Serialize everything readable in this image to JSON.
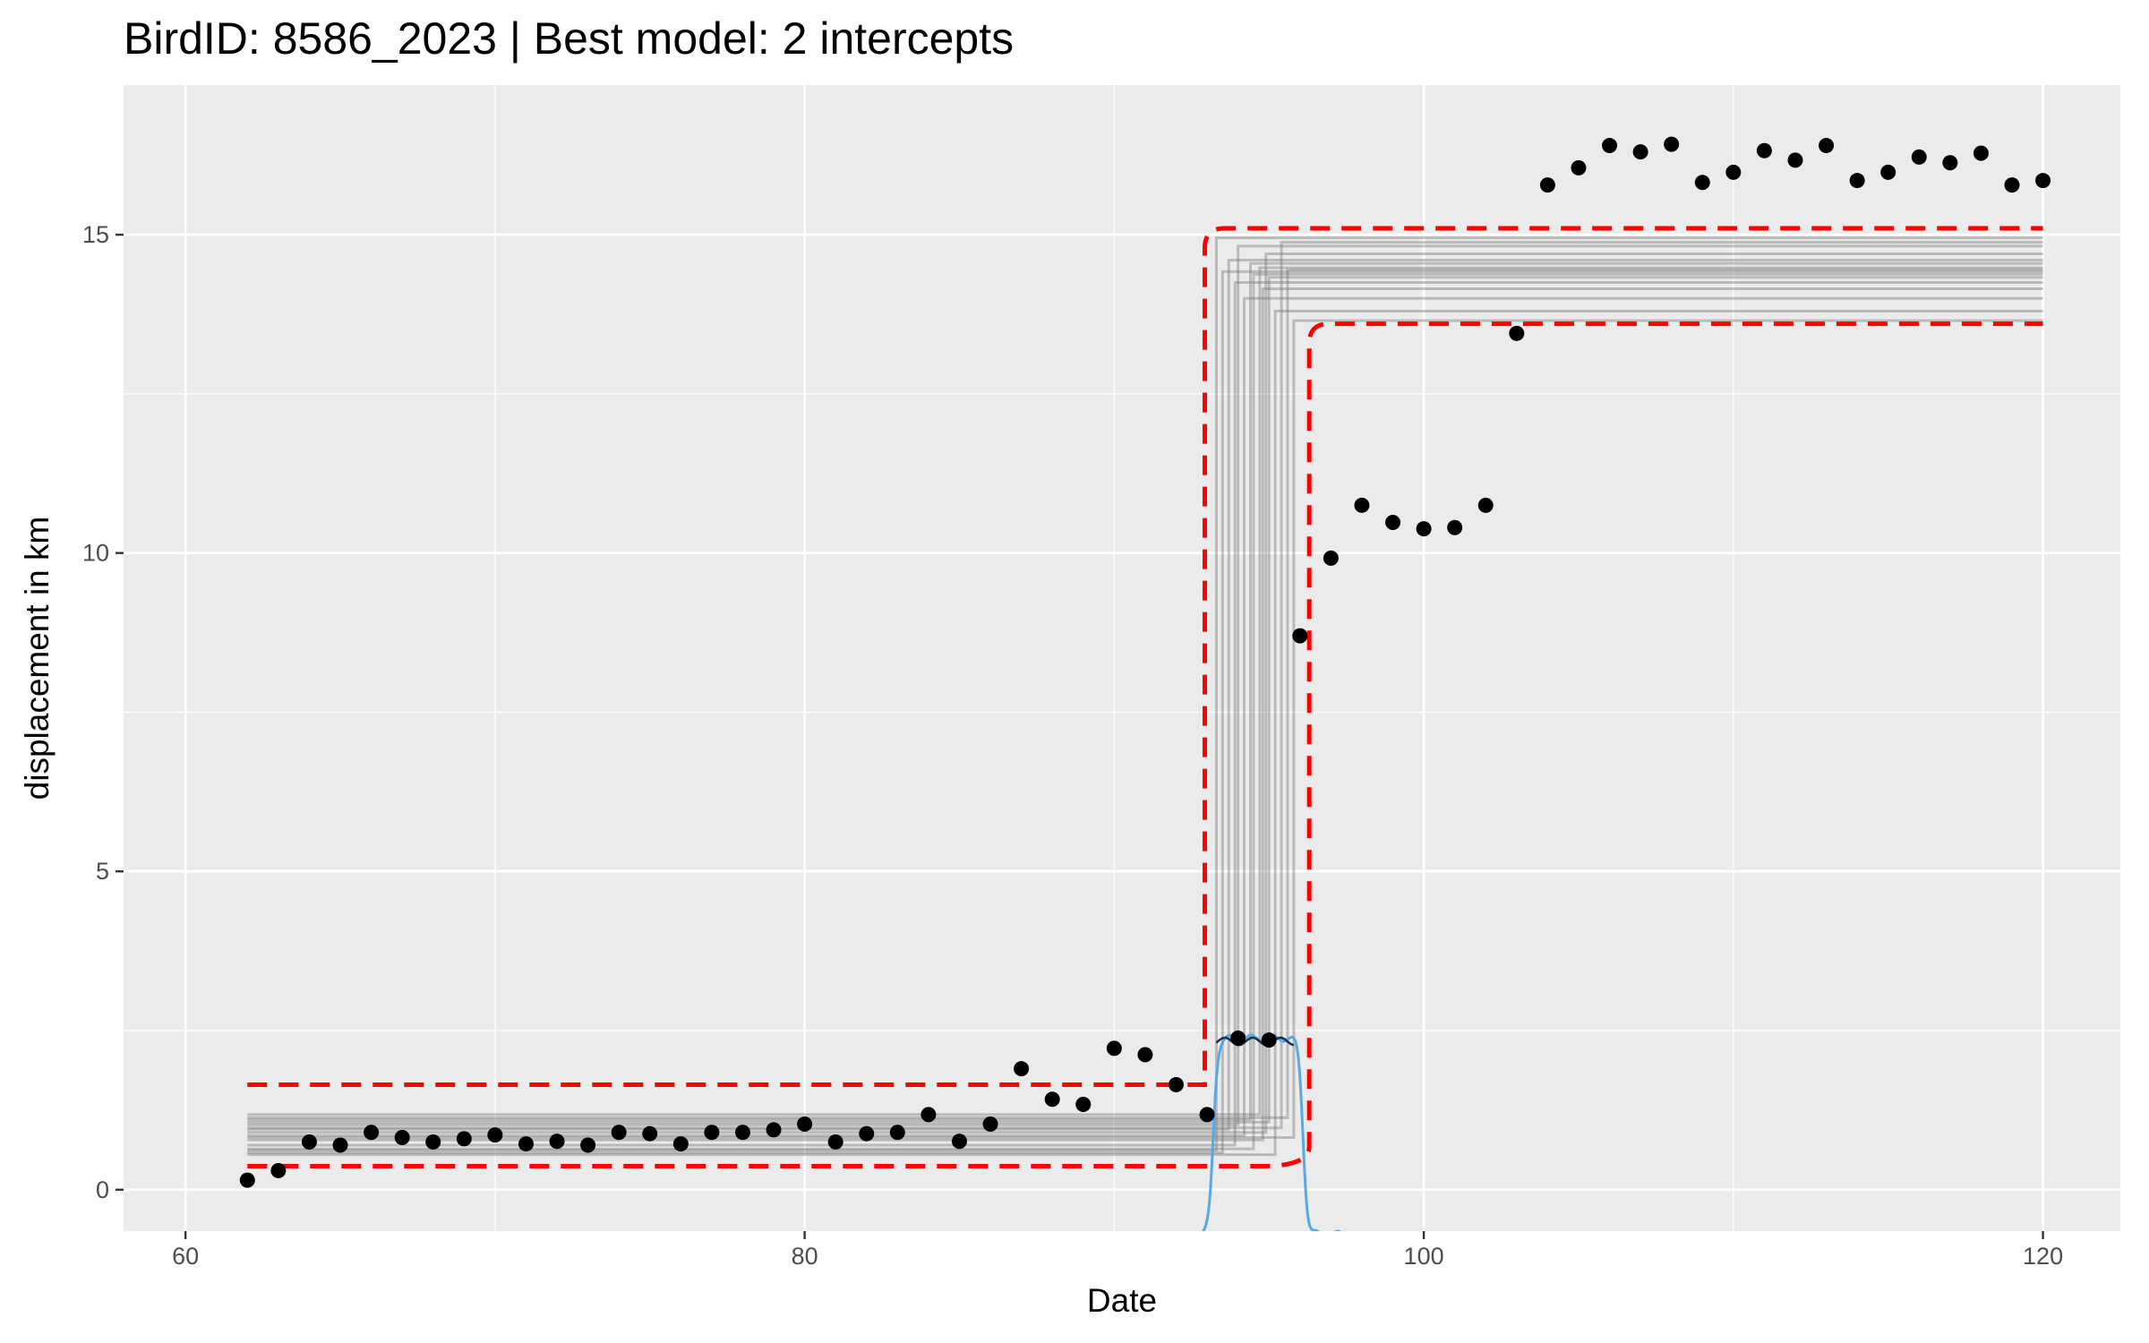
{
  "chart_data": {
    "type": "scatter",
    "title": "BirdID: 8586_2023 | Best model: 2 intercepts",
    "xlabel": "Date",
    "ylabel": "displacement in km",
    "xlim": [
      58,
      122.5
    ],
    "ylim": [
      -0.65,
      17.35
    ],
    "x_ticks": [
      60,
      80,
      100,
      120
    ],
    "y_ticks": [
      0,
      5,
      10,
      15
    ],
    "grid": true,
    "colors": {
      "panel_background": "#ebebeb",
      "grid_major": "#ffffff",
      "points": "#000000",
      "model_fits": "#7f7f7f",
      "credible_interval": "#ff0000",
      "density_blue": "#56a9e6",
      "density_dark": "#1b2f4f"
    },
    "points": [
      [
        62,
        0.15
      ],
      [
        63,
        0.3
      ],
      [
        64,
        0.75
      ],
      [
        65,
        0.7
      ],
      [
        66,
        0.9
      ],
      [
        67,
        0.82
      ],
      [
        68,
        0.75
      ],
      [
        69,
        0.8
      ],
      [
        70,
        0.86
      ],
      [
        71,
        0.72
      ],
      [
        72,
        0.76
      ],
      [
        73,
        0.7
      ],
      [
        74,
        0.9
      ],
      [
        75,
        0.88
      ],
      [
        76,
        0.72
      ],
      [
        77,
        0.9
      ],
      [
        78,
        0.9
      ],
      [
        79,
        0.94
      ],
      [
        80,
        1.03
      ],
      [
        81,
        0.75
      ],
      [
        82,
        0.88
      ],
      [
        83,
        0.9
      ],
      [
        84,
        1.18
      ],
      [
        85,
        0.76
      ],
      [
        86,
        1.03
      ],
      [
        87,
        1.9
      ],
      [
        88,
        1.42
      ],
      [
        89,
        1.34
      ],
      [
        90,
        2.22
      ],
      [
        91,
        2.12
      ],
      [
        92,
        1.65
      ],
      [
        93,
        1.18
      ],
      [
        94,
        2.38
      ],
      [
        95,
        2.35
      ],
      [
        96,
        8.7
      ],
      [
        97,
        9.92
      ],
      [
        98,
        10.75
      ],
      [
        99,
        10.48
      ],
      [
        100,
        10.38
      ],
      [
        101,
        10.4
      ],
      [
        102,
        10.75
      ],
      [
        103,
        13.45
      ],
      [
        104,
        15.78
      ],
      [
        105,
        16.05
      ],
      [
        106,
        16.4
      ],
      [
        107,
        16.3
      ],
      [
        108,
        16.42
      ],
      [
        109,
        15.82
      ],
      [
        110,
        15.98
      ],
      [
        111,
        16.32
      ],
      [
        112,
        16.17
      ],
      [
        113,
        16.4
      ],
      [
        114,
        15.85
      ],
      [
        115,
        15.98
      ],
      [
        116,
        16.22
      ],
      [
        117,
        16.13
      ],
      [
        118,
        16.28
      ],
      [
        119,
        15.78
      ],
      [
        120,
        15.85
      ]
    ],
    "model_fits": {
      "x_start": 62,
      "x_end": 120,
      "series": [
        {
          "switch": 93.3,
          "low": 0.62,
          "high": 14.95
        },
        {
          "switch": 93.5,
          "low": 0.58,
          "high": 14.42
        },
        {
          "switch": 93.7,
          "low": 0.95,
          "high": 14.6
        },
        {
          "switch": 93.9,
          "low": 0.7,
          "high": 14.25
        },
        {
          "switch": 94.0,
          "low": 1.02,
          "high": 14.82
        },
        {
          "switch": 94.2,
          "low": 0.85,
          "high": 14.0
        },
        {
          "switch": 94.4,
          "low": 1.1,
          "high": 14.55
        },
        {
          "switch": 94.5,
          "low": 0.64,
          "high": 14.38
        },
        {
          "switch": 94.7,
          "low": 1.18,
          "high": 14.48
        },
        {
          "switch": 94.8,
          "low": 0.78,
          "high": 14.15
        },
        {
          "switch": 94.9,
          "low": 0.9,
          "high": 14.7
        },
        {
          "switch": 95.0,
          "low": 1.06,
          "high": 14.33
        },
        {
          "switch": 95.2,
          "low": 0.55,
          "high": 13.8
        },
        {
          "switch": 95.4,
          "low": 0.97,
          "high": 14.88
        },
        {
          "switch": 95.6,
          "low": 1.13,
          "high": 14.45
        },
        {
          "switch": 95.8,
          "low": 0.82,
          "high": 13.65
        }
      ]
    },
    "credible_interval": {
      "x_start": 62,
      "x_end": 120,
      "lower_step_x": 96.3,
      "upper_step_x": 93.1,
      "upper": {
        "low": 1.65,
        "high": 15.1
      },
      "lower": {
        "low": 0.37,
        "high": 13.6
      }
    },
    "switch_density": {
      "x_start": 92.5,
      "x_end": 97.6,
      "plateau_from": 93.3,
      "plateau_to": 95.8,
      "level": 2.38,
      "baseline": -0.7
    }
  }
}
